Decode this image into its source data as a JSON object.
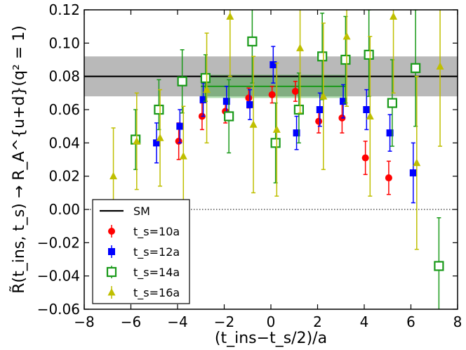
{
  "chart_data": {
    "type": "scatter",
    "title": "",
    "xlabel": "(t_ins−t_s/2)/a",
    "ylabel": "R̃(t_ins, t_s) → R_A^{u+d}(q² = 1)",
    "xlim": [
      -8,
      8
    ],
    "ylim": [
      -0.06,
      0.12
    ],
    "x_ticks": [
      -8,
      -6,
      -4,
      -2,
      0,
      2,
      4,
      6,
      8
    ],
    "x_tick_labels": [
      "−8",
      "−6",
      "−4",
      "−2",
      "0",
      "2",
      "4",
      "6",
      "8"
    ],
    "y_ticks": [
      -0.06,
      -0.04,
      -0.02,
      0.0,
      0.02,
      0.04,
      0.06,
      0.08,
      0.1,
      0.12
    ],
    "y_tick_labels": [
      "−0.06",
      "−0.04",
      "−0.02",
      "0.00",
      "0.02",
      "0.04",
      "0.06",
      "0.08",
      "0.10",
      "0.12"
    ],
    "reference_lines": [
      {
        "name": "SM",
        "y": 0.08,
        "band": [
          0.068,
          0.092
        ],
        "color": "#000000"
      },
      {
        "name": "zero",
        "y": 0.0,
        "style": "dotted",
        "color": "#000000"
      }
    ],
    "fit": {
      "x_range": [
        -3,
        3.2
      ],
      "y": 0.074,
      "band": [
        0.067,
        0.081
      ],
      "color": "#1a9a1a"
    },
    "legend": {
      "position": "bottom-left",
      "entries": [
        {
          "label": "SM",
          "key": "sm"
        },
        {
          "label": "t_s=10a",
          "key": "ts10"
        },
        {
          "label": "t_s=12a",
          "key": "ts12"
        },
        {
          "label": "t_s=14a",
          "key": "ts14"
        },
        {
          "label": "t_s=16a",
          "key": "ts16"
        }
      ]
    },
    "series": [
      {
        "name": "ts=10a",
        "color": "#ff0000",
        "marker": "circle",
        "points": [
          {
            "x": -3.95,
            "y": 0.041,
            "lo": 0.03,
            "hi": 0.052
          },
          {
            "x": -2.95,
            "y": 0.056,
            "lo": 0.048,
            "hi": 0.064
          },
          {
            "x": -1.95,
            "y": 0.059,
            "lo": 0.052,
            "hi": 0.066
          },
          {
            "x": -0.95,
            "y": 0.067,
            "lo": 0.061,
            "hi": 0.073
          },
          {
            "x": 0.05,
            "y": 0.069,
            "lo": 0.064,
            "hi": 0.074
          },
          {
            "x": 1.05,
            "y": 0.071,
            "lo": 0.065,
            "hi": 0.077
          },
          {
            "x": 2.05,
            "y": 0.053,
            "lo": 0.046,
            "hi": 0.06
          },
          {
            "x": 3.05,
            "y": 0.055,
            "lo": 0.046,
            "hi": 0.064
          },
          {
            "x": 4.05,
            "y": 0.031,
            "lo": 0.021,
            "hi": 0.041
          },
          {
            "x": 5.05,
            "y": 0.019,
            "lo": 0.009,
            "hi": 0.029
          }
        ]
      },
      {
        "name": "ts=12a",
        "color": "#0000ff",
        "marker": "square",
        "points": [
          {
            "x": -4.9,
            "y": 0.04,
            "lo": 0.028,
            "hi": 0.052
          },
          {
            "x": -3.9,
            "y": 0.05,
            "lo": 0.04,
            "hi": 0.06
          },
          {
            "x": -2.9,
            "y": 0.066,
            "lo": 0.056,
            "hi": 0.076
          },
          {
            "x": -1.9,
            "y": 0.065,
            "lo": 0.056,
            "hi": 0.074
          },
          {
            "x": -0.9,
            "y": 0.063,
            "lo": 0.054,
            "hi": 0.072
          },
          {
            "x": 0.1,
            "y": 0.087,
            "lo": 0.076,
            "hi": 0.098
          },
          {
            "x": 1.1,
            "y": 0.046,
            "lo": 0.036,
            "hi": 0.056
          },
          {
            "x": 2.1,
            "y": 0.06,
            "lo": 0.05,
            "hi": 0.07
          },
          {
            "x": 3.1,
            "y": 0.065,
            "lo": 0.055,
            "hi": 0.075
          },
          {
            "x": 4.1,
            "y": 0.06,
            "lo": 0.048,
            "hi": 0.072
          },
          {
            "x": 5.1,
            "y": 0.046,
            "lo": 0.035,
            "hi": 0.057
          },
          {
            "x": 6.1,
            "y": 0.022,
            "lo": 0.004,
            "hi": 0.04
          }
        ]
      },
      {
        "name": "ts=14a",
        "color": "#1a9a1a",
        "marker": "open-square",
        "points": [
          {
            "x": -5.8,
            "y": 0.042,
            "lo": 0.024,
            "hi": 0.06
          },
          {
            "x": -4.8,
            "y": 0.06,
            "lo": 0.048,
            "hi": 0.078
          },
          {
            "x": -3.8,
            "y": 0.077,
            "lo": 0.058,
            "hi": 0.096
          },
          {
            "x": -2.8,
            "y": 0.079,
            "lo": 0.065,
            "hi": 0.093
          },
          {
            "x": -1.8,
            "y": 0.056,
            "lo": 0.034,
            "hi": 0.078
          },
          {
            "x": -0.8,
            "y": 0.101,
            "lo": 0.076,
            "hi": 0.124
          },
          {
            "x": 0.2,
            "y": 0.04,
            "lo": 0.016,
            "hi": 0.064
          },
          {
            "x": 1.2,
            "y": 0.06,
            "lo": 0.04,
            "hi": 0.082
          },
          {
            "x": 2.2,
            "y": 0.092,
            "lo": 0.066,
            "hi": 0.118
          },
          {
            "x": 3.2,
            "y": 0.09,
            "lo": 0.064,
            "hi": 0.116
          },
          {
            "x": 4.2,
            "y": 0.093,
            "lo": 0.068,
            "hi": 0.12
          },
          {
            "x": 5.2,
            "y": 0.064,
            "lo": 0.038,
            "hi": 0.09
          },
          {
            "x": 6.2,
            "y": 0.085,
            "lo": 0.05,
            "hi": 0.12
          },
          {
            "x": 7.2,
            "y": -0.034,
            "lo": -0.064,
            "hi": -0.005
          }
        ]
      },
      {
        "name": "ts=16a",
        "color": "#bfbf00",
        "marker": "triangle",
        "points": [
          {
            "x": -6.75,
            "y": 0.02,
            "lo": -0.008,
            "hi": 0.049
          },
          {
            "x": -5.75,
            "y": 0.041,
            "lo": 0.012,
            "hi": 0.07
          },
          {
            "x": -4.75,
            "y": 0.043,
            "lo": 0.014,
            "hi": 0.072
          },
          {
            "x": -3.75,
            "y": 0.032,
            "lo": 0.002,
            "hi": 0.062
          },
          {
            "x": -2.75,
            "y": 0.072,
            "lo": 0.04,
            "hi": 0.106
          },
          {
            "x": -1.75,
            "y": 0.116,
            "lo": 0.08,
            "hi": 0.124
          },
          {
            "x": -0.75,
            "y": 0.051,
            "lo": 0.01,
            "hi": 0.092
          },
          {
            "x": 0.25,
            "y": 0.048,
            "lo": 0.008,
            "hi": 0.088
          },
          {
            "x": 1.25,
            "y": 0.097,
            "lo": 0.058,
            "hi": 0.124
          },
          {
            "x": 2.25,
            "y": 0.068,
            "lo": 0.024,
            "hi": 0.112
          },
          {
            "x": 3.25,
            "y": 0.104,
            "lo": 0.062,
            "hi": 0.124
          },
          {
            "x": 4.25,
            "y": 0.056,
            "lo": 0.008,
            "hi": 0.104
          },
          {
            "x": 5.25,
            "y": 0.116,
            "lo": 0.07,
            "hi": 0.124
          },
          {
            "x": 6.25,
            "y": 0.028,
            "lo": -0.024,
            "hi": 0.08
          },
          {
            "x": 7.25,
            "y": 0.086,
            "lo": 0.038,
            "hi": 0.124
          }
        ]
      }
    ]
  }
}
